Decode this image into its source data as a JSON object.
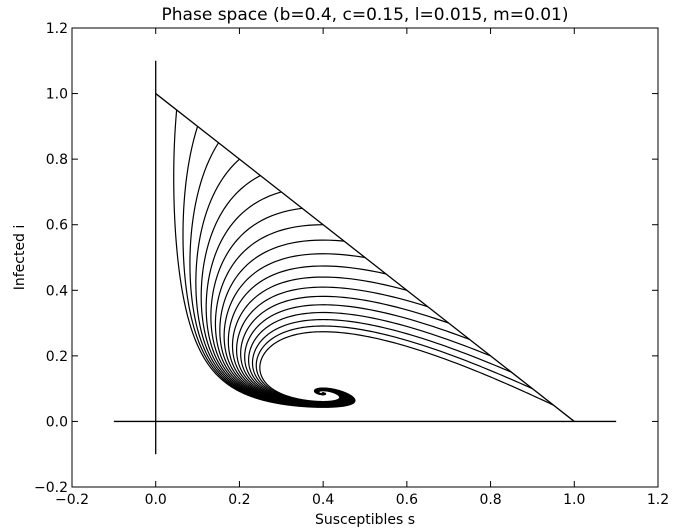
{
  "chart_data": {
    "type": "line",
    "title": "Phase space (b=0.4, c=0.15, l=0.015, m=0.01)",
    "xlabel": "Susceptibles s",
    "ylabel": "Infected i",
    "xlim": [
      -0.2,
      1.2
    ],
    "ylim": [
      -0.2,
      1.2
    ],
    "x_ticks": [
      "−0.2",
      "0.0",
      "0.2",
      "0.4",
      "0.6",
      "0.8",
      "1.0",
      "1.2"
    ],
    "y_ticks": [
      "−0.2",
      "0.0",
      "0.2",
      "0.4",
      "0.6",
      "0.8",
      "1.0",
      "1.2"
    ],
    "grid": false,
    "reference_lines": [
      {
        "x": [
          -0.1,
          1.1
        ],
        "y": [
          0,
          0
        ]
      },
      {
        "x": [
          0,
          0
        ],
        "y": [
          -0.1,
          1.1
        ]
      },
      {
        "x": [
          0,
          1
        ],
        "y": [
          1,
          0
        ]
      }
    ],
    "parameters": {
      "b": 0.4,
      "c": 0.15,
      "l": 0.015,
      "m": 0.01
    },
    "initial_i": [
      0.95,
      0.9,
      0.85,
      0.8,
      0.75,
      0.7,
      0.65,
      0.6,
      0.55,
      0.5,
      0.45,
      0.4,
      0.35,
      0.3,
      0.25,
      0.2,
      0.15,
      0.1,
      0.05
    ],
    "equilibrium": {
      "s": 0.4,
      "i": 0.0686
    },
    "line_color": "#000000"
  }
}
